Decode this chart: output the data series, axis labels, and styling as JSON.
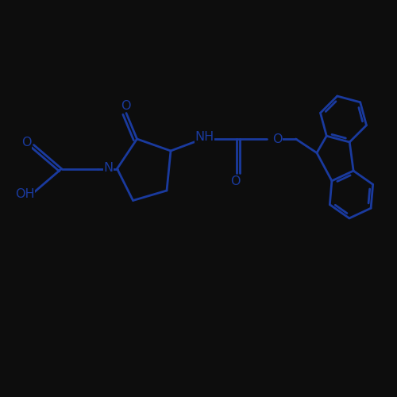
{
  "bond_color": "#1a3a9e",
  "bg_color": "#0d0d0d",
  "line_width": 2.0,
  "font_size": 11.5,
  "fig_width": 5.0,
  "fig_height": 5.0,
  "xlim": [
    0,
    10
  ],
  "ylim": [
    0,
    10
  ]
}
